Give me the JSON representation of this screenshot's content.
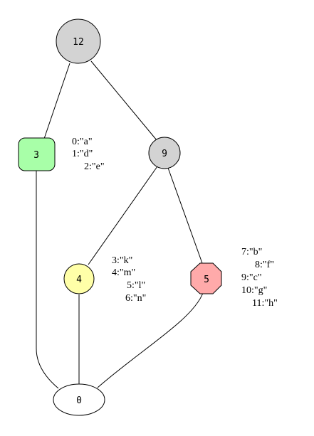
{
  "diagram": {
    "nodes": [
      {
        "id": "12",
        "label": "12",
        "shape": "circle",
        "fill": "#d3d3d3"
      },
      {
        "id": "3",
        "label": "3",
        "shape": "rounded-square",
        "fill": "#a8ffa8"
      },
      {
        "id": "9",
        "label": "9",
        "shape": "circle",
        "fill": "#d3d3d3"
      },
      {
        "id": "4",
        "label": "4",
        "shape": "circle",
        "fill": "#ffffa8"
      },
      {
        "id": "5",
        "label": "5",
        "shape": "octagon",
        "fill": "#ffaaaa"
      },
      {
        "id": "0",
        "label": "0",
        "shape": "ellipse",
        "fill": "#ffffff"
      }
    ],
    "edges": [
      {
        "from": "12",
        "to": "3"
      },
      {
        "from": "12",
        "to": "9"
      },
      {
        "from": "9",
        "to": "4"
      },
      {
        "from": "9",
        "to": "5"
      },
      {
        "from": "3",
        "to": "0"
      },
      {
        "from": "4",
        "to": "0"
      },
      {
        "from": "5",
        "to": "0"
      }
    ],
    "annotations": {
      "node3": [
        "0:\"a\"",
        "1:\"d\"",
        "2:\"e\""
      ],
      "node4": [
        "3:\"k\"",
        "4:\"m\"",
        "5:\"l\"",
        "6:\"n\""
      ],
      "node5": [
        "7:\"b\"",
        "8:\"f\"",
        "9:\"c\"",
        "10:\"g\"",
        "11:\"h\""
      ]
    }
  }
}
